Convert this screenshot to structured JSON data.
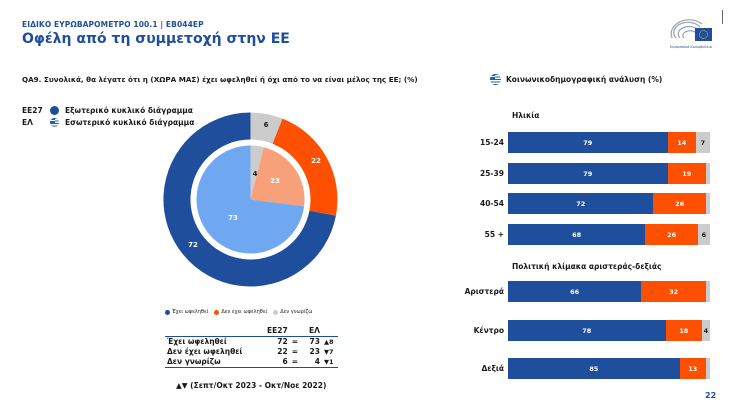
{
  "header": {
    "supertitle": "ΕΙΔΙΚΟ ΕΥΡΩΒΑΡΟΜΕΤΡΟ 100.1 | EB044EP",
    "title": "Οφέλη από τη συμμετοχή στην ΕΕ",
    "logo_text": "Ευρωπαϊκό Κοινοβούλιο"
  },
  "question": "QA9. Συνολικά, θα λέγατε ότι η (ΧΩΡΑ ΜΑΣ) έχει ωφεληθεί ή όχι από το να είναι μέλος της ΕΕ; (%)",
  "socio_heading": "Κοινωνικοδημογραφική ανάλυση (%)",
  "donut_legend": [
    {
      "code": "ΕΕ27",
      "icon": "blue-dot-icon",
      "label": "Εξωτερικό κυκλικό διάγραμμα"
    },
    {
      "code": "ΕΛ",
      "icon": "greek-flag-icon",
      "label": "Εσωτερικό κυκλικό διάγραμμα"
    }
  ],
  "mini_legend": [
    {
      "label": "Έχει ωφεληθεί",
      "color": "#1f4e9c"
    },
    {
      "label": "Δεν έχει ωφεληθεί",
      "color": "#fe5000"
    },
    {
      "label": "Δεν γνωρίζω",
      "color": "#cccccc"
    }
  ],
  "summary_table": {
    "headers": [
      "",
      "ΕΕ27",
      "",
      "ΕΛ",
      ""
    ],
    "rows": [
      {
        "label": "Έχει ωφεληθεί",
        "eu27": "72",
        "sep": "=",
        "el": "73",
        "change": "▲8"
      },
      {
        "label": "Δεν έχει ωφεληθεί",
        "eu27": "22",
        "sep": "=",
        "el": "23",
        "change": "▼7"
      },
      {
        "label": "Δεν γνωρίζω",
        "eu27": "6",
        "sep": "=",
        "el": "4",
        "change": "▼1"
      }
    ]
  },
  "footnote": "▲▼ (Σεπτ/Οκτ 2023 - Οκτ/Νοε 2022)",
  "age_section_label": "Ηλικία",
  "politics_section_label": "Πολιτική κλίμακα αριστεράς-δεξιάς",
  "page_number": "22",
  "colors": {
    "benefited": "#1f4e9c",
    "not_benefited": "#fe5000",
    "dont_know": "#cccccc",
    "el_benefited": "#6fa8f0",
    "el_not_benefited": "#f7a07a",
    "title": "#1f4e9c"
  },
  "chart_data": [
    {
      "type": "pie",
      "title": "QA9 donut – outer ring EU27, inner pie Greece",
      "series": [
        {
          "name": "ΕΕ27 (outer)",
          "categories": [
            "Έχει ωφεληθεί",
            "Δεν έχει ωφεληθεί",
            "Δεν γνωρίζω"
          ],
          "values": [
            72,
            22,
            6
          ]
        },
        {
          "name": "ΕΛ (inner)",
          "categories": [
            "Έχει ωφεληθεί",
            "Δεν έχει ωφεληθεί",
            "Δεν γνωρίζω"
          ],
          "values": [
            73,
            23,
            4
          ]
        }
      ]
    },
    {
      "type": "bar",
      "orientation": "horizontal-stacked",
      "title": "Ηλικία",
      "categories": [
        "15-24",
        "25-39",
        "40-54",
        "55 +"
      ],
      "series": [
        {
          "name": "Έχει ωφεληθεί",
          "values": [
            79,
            79,
            72,
            68
          ]
        },
        {
          "name": "Δεν έχει ωφεληθεί",
          "values": [
            14,
            19,
            26,
            26
          ]
        },
        {
          "name": "Δεν γνωρίζω",
          "values": [
            7,
            2,
            2,
            6
          ]
        }
      ]
    },
    {
      "type": "bar",
      "orientation": "horizontal-stacked",
      "title": "Πολιτική κλίμακα αριστεράς-δεξιάς",
      "categories": [
        "Αριστερά",
        "Κέντρο",
        "Δεξιά"
      ],
      "series": [
        {
          "name": "Έχει ωφεληθεί",
          "values": [
            66,
            78,
            85
          ]
        },
        {
          "name": "Δεν έχει ωφεληθεί",
          "values": [
            32,
            18,
            13
          ]
        },
        {
          "name": "Δεν γνωρίζω",
          "values": [
            2,
            4,
            2
          ]
        }
      ]
    }
  ],
  "age_rows": [
    {
      "label": "15-24",
      "b": 79,
      "o": 14,
      "g": 7,
      "b_label": "79",
      "o_label": "14",
      "g_label": "7"
    },
    {
      "label": "25-39",
      "b": 79,
      "o": 19,
      "g": 2,
      "b_label": "79",
      "o_label": "19",
      "g_label": ""
    },
    {
      "label": "40-54",
      "b": 72,
      "o": 26,
      "g": 2,
      "b_label": "72",
      "o_label": "26",
      "g_label": ""
    },
    {
      "label": "55 +",
      "b": 68,
      "o": 26,
      "g": 6,
      "b_label": "68",
      "o_label": "26",
      "g_label": "6"
    }
  ],
  "politics_rows": [
    {
      "label": "Αριστερά",
      "b": 66,
      "o": 32,
      "g": 2,
      "b_label": "66",
      "o_label": "32",
      "g_label": ""
    },
    {
      "label": "Κέντρο",
      "b": 78,
      "o": 18,
      "g": 4,
      "b_label": "78",
      "o_label": "18",
      "g_label": "4"
    },
    {
      "label": "Δεξιά",
      "b": 85,
      "o": 13,
      "g": 2,
      "b_label": "85",
      "o_label": "13",
      "g_label": ""
    }
  ],
  "donut_labels": {
    "outer_b": "72",
    "outer_o": "22",
    "outer_g": "6",
    "inner_b": "73",
    "inner_o": "23",
    "inner_g": "4"
  }
}
